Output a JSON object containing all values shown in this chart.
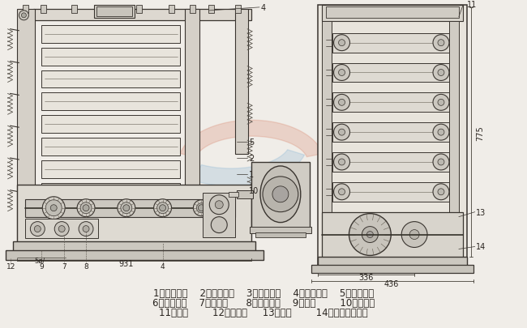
{
  "bg_color": "#f0ede8",
  "draw_color": "#3a3530",
  "line_color": "#4a4540",
  "watermark_blue": "#5599cc",
  "watermark_red": "#cc5533",
  "text_color": "#2a2520",
  "font_size_label": 8.5,
  "font_size_num": 7,
  "line1": "1、传动主轴    2、小斜齿轮    3、大斜齿轮    4、上偏心轮    5、下偏心轮",
  "line2": "6、小斜齿轮    7、凸轮轴      8、大斜齿轮    9、凸轮        10、跳动杆",
  "line3": "11、锤铁        12、甩油器     13、螺塔        14、自动停车装置"
}
